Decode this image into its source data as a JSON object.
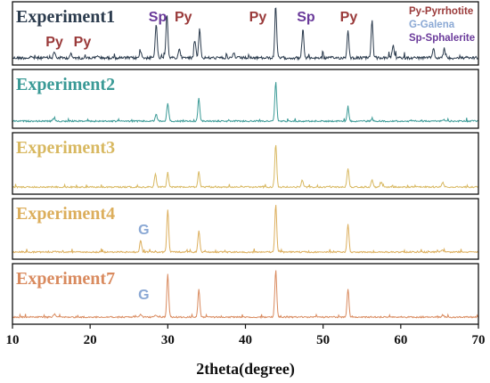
{
  "chart_data": {
    "type": "line",
    "xlabel": "2theta(degree)",
    "xlim": [
      10,
      70
    ],
    "x_ticks": [
      10,
      20,
      30,
      40,
      50,
      60,
      70
    ],
    "legend": [
      {
        "text": "Py-Pyrrhotite",
        "color": "#9a3a3a"
      },
      {
        "text": "G-Galena",
        "color": "#8aa8d4"
      },
      {
        "text": "Sp-Sphalerite",
        "color": "#6a3a9a"
      }
    ],
    "series": [
      {
        "name": "Experiment1",
        "color": "#2b3b4d",
        "peaks": [
          [
            15.4,
            0.12
          ],
          [
            17.5,
            0.08
          ],
          [
            21.0,
            0.05
          ],
          [
            26.5,
            0.15
          ],
          [
            28.5,
            0.7
          ],
          [
            29.9,
            0.9
          ],
          [
            31.5,
            0.2
          ],
          [
            33.5,
            0.35
          ],
          [
            34.1,
            0.6
          ],
          [
            38.5,
            0.1
          ],
          [
            43.9,
            1.0
          ],
          [
            47.4,
            0.6
          ],
          [
            53.2,
            0.55
          ],
          [
            56.3,
            0.75
          ],
          [
            59.0,
            0.25
          ],
          [
            64.2,
            0.2
          ],
          [
            65.6,
            0.2
          ]
        ]
      },
      {
        "name": "Experiment2",
        "color": "#3a9a96",
        "peaks": [
          [
            15.3,
            0.05
          ],
          [
            28.5,
            0.15
          ],
          [
            30.0,
            0.4
          ],
          [
            34.0,
            0.5
          ],
          [
            43.9,
            0.85
          ],
          [
            53.2,
            0.3
          ],
          [
            56.3,
            0.05
          ],
          [
            65.5,
            0.04
          ]
        ]
      },
      {
        "name": "Experiment3",
        "color": "#d8b860",
        "peaks": [
          [
            28.4,
            0.28
          ],
          [
            30.0,
            0.3
          ],
          [
            34.0,
            0.32
          ],
          [
            43.9,
            0.9
          ],
          [
            47.3,
            0.15
          ],
          [
            53.2,
            0.4
          ],
          [
            56.3,
            0.15
          ],
          [
            57.5,
            0.1
          ],
          [
            65.4,
            0.1
          ]
        ]
      },
      {
        "name": "Experiment4",
        "color": "#dcae5c",
        "peaks": [
          [
            15.4,
            0.03
          ],
          [
            26.5,
            0.25
          ],
          [
            30.0,
            0.9
          ],
          [
            34.0,
            0.45
          ],
          [
            43.9,
            1.0
          ],
          [
            53.2,
            0.6
          ],
          [
            65.4,
            0.05
          ]
        ]
      },
      {
        "name": "Experiment7",
        "color": "#d98a5e",
        "peaks": [
          [
            15.4,
            0.06
          ],
          [
            26.5,
            0.05
          ],
          [
            28.4,
            0.05
          ],
          [
            30.0,
            0.9
          ],
          [
            34.0,
            0.58
          ],
          [
            43.9,
            1.0
          ],
          [
            53.2,
            0.6
          ],
          [
            65.4,
            0.04
          ]
        ]
      }
    ],
    "annotations": [
      {
        "panel": 0,
        "text": "Py",
        "x": 15.4,
        "color": "#9a3a3a"
      },
      {
        "panel": 0,
        "text": "Py",
        "x": 19.0,
        "color": "#9a3a3a"
      },
      {
        "panel": 0,
        "text": "Sp",
        "x": 28.7,
        "color": "#6a3a9a"
      },
      {
        "panel": 0,
        "text": "Py",
        "x": 32.0,
        "color": "#9a3a3a"
      },
      {
        "panel": 0,
        "text": "Py",
        "x": 41.6,
        "color": "#9a3a3a"
      },
      {
        "panel": 0,
        "text": "Sp",
        "x": 47.8,
        "color": "#6a3a9a"
      },
      {
        "panel": 0,
        "text": "Py",
        "x": 53.3,
        "color": "#9a3a3a"
      },
      {
        "panel": 3,
        "text": "G",
        "x": 26.9,
        "color": "#8aa8d4"
      },
      {
        "panel": 4,
        "text": "G",
        "x": 26.9,
        "color": "#8aa8d4"
      }
    ]
  }
}
